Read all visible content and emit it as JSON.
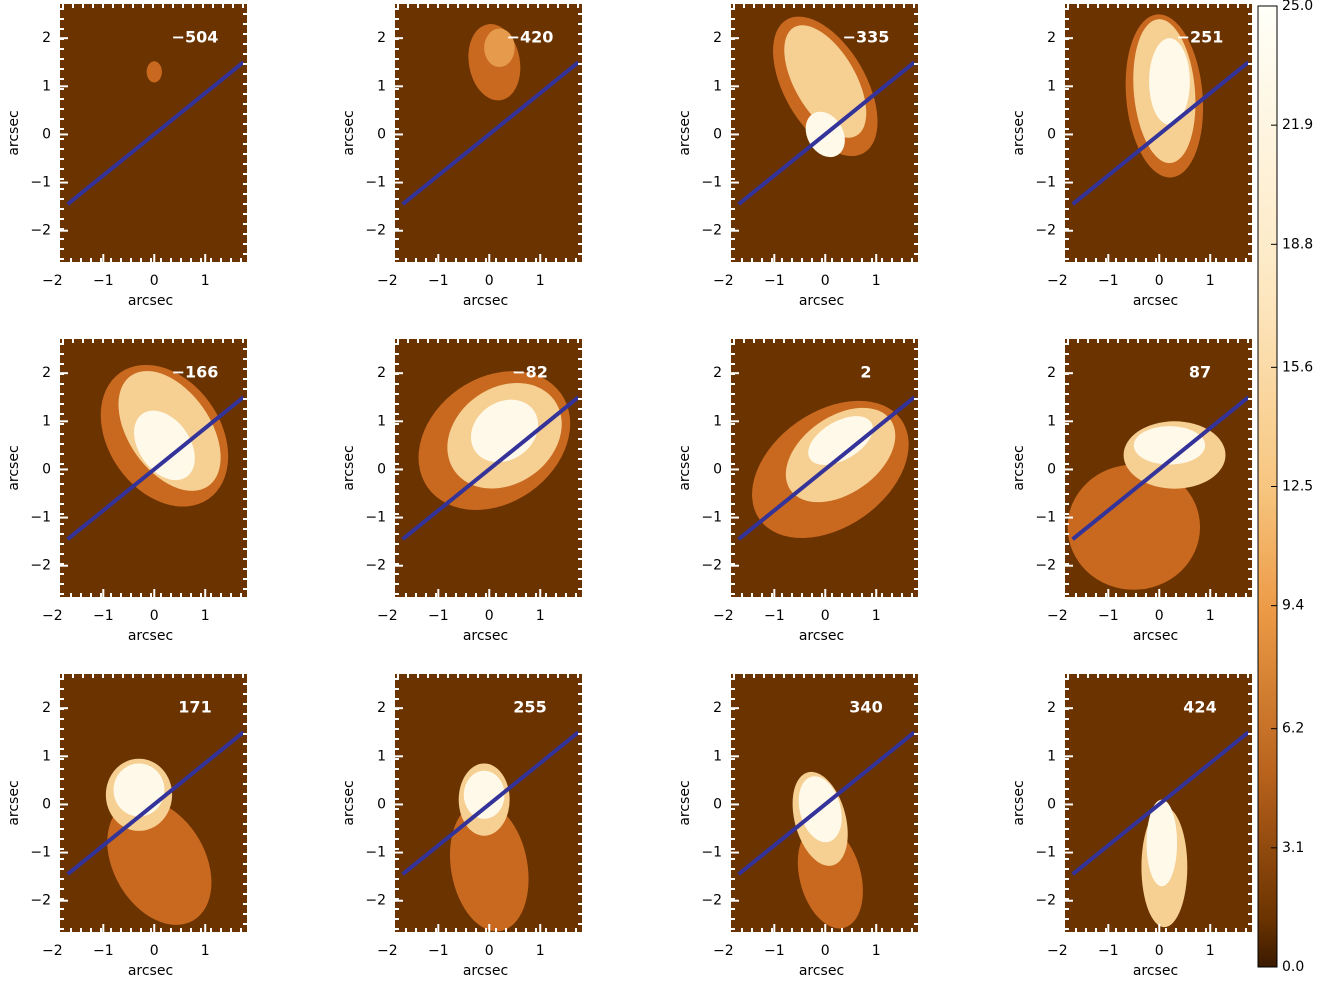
{
  "chart_data": [
    {
      "type": "image",
      "label": "−504",
      "x_label": "arcsec",
      "y_label": "arcsec",
      "xlim": [
        -1.85,
        1.82
      ],
      "ylim": [
        -2.65,
        2.71
      ],
      "xticks": [
        {
          "value": -2,
          "label": "−2"
        },
        {
          "value": -1,
          "label": "−1"
        },
        0,
        1
      ],
      "yticks": [
        {
          "value": -2,
          "label": "−2"
        },
        {
          "value": -1,
          "label": "−1"
        },
        0,
        1,
        2
      ],
      "line": {
        "x": [
          -1.7,
          1.75
        ],
        "y": [
          -1.45,
          1.5
        ],
        "color": "#333399"
      }
    },
    {
      "type": "image",
      "label": "−420",
      "x_label": "arcsec",
      "y_label": "arcsec",
      "xlim": [
        -1.85,
        1.82
      ],
      "ylim": [
        -2.65,
        2.71
      ],
      "xticks": [
        {
          "value": -2,
          "label": "−2"
        },
        {
          "value": -1,
          "label": "−1"
        },
        0,
        1
      ],
      "yticks": [
        {
          "value": -2,
          "label": "−2"
        },
        {
          "value": -1,
          "label": "−1"
        },
        0,
        1,
        2
      ],
      "line": {
        "x": [
          -1.7,
          1.75
        ],
        "y": [
          -1.45,
          1.5
        ],
        "color": "#333399"
      }
    },
    {
      "type": "image",
      "label": "−335",
      "x_label": "arcsec",
      "y_label": "arcsec",
      "xlim": [
        -1.85,
        1.82
      ],
      "ylim": [
        -2.65,
        2.71
      ],
      "xticks": [
        {
          "value": -2,
          "label": "−2"
        },
        {
          "value": -1,
          "label": "−1"
        },
        0,
        1
      ],
      "yticks": [
        {
          "value": -2,
          "label": "−2"
        },
        {
          "value": -1,
          "label": "−1"
        },
        0,
        1,
        2
      ],
      "line": {
        "x": [
          -1.7,
          1.75
        ],
        "y": [
          -1.45,
          1.5
        ],
        "color": "#333399"
      }
    },
    {
      "type": "image",
      "label": "−251",
      "x_label": "arcsec",
      "y_label": "arcsec",
      "xlim": [
        -1.85,
        1.82
      ],
      "ylim": [
        -2.65,
        2.71
      ],
      "xticks": [
        {
          "value": -2,
          "label": "−2"
        },
        {
          "value": -1,
          "label": "−1"
        },
        0,
        1
      ],
      "yticks": [
        {
          "value": -2,
          "label": "−2"
        },
        {
          "value": -1,
          "label": "−1"
        },
        0,
        1,
        2
      ],
      "line": {
        "x": [
          -1.7,
          1.75
        ],
        "y": [
          -1.45,
          1.5
        ],
        "color": "#333399"
      }
    },
    {
      "type": "image",
      "label": "−166",
      "x_label": "arcsec",
      "y_label": "arcsec",
      "xlim": [
        -1.85,
        1.82
      ],
      "ylim": [
        -2.65,
        2.71
      ],
      "xticks": [
        {
          "value": -2,
          "label": "−2"
        },
        {
          "value": -1,
          "label": "−1"
        },
        0,
        1
      ],
      "yticks": [
        {
          "value": -2,
          "label": "−2"
        },
        {
          "value": -1,
          "label": "−1"
        },
        0,
        1,
        2
      ],
      "line": {
        "x": [
          -1.7,
          1.75
        ],
        "y": [
          -1.45,
          1.5
        ],
        "color": "#333399"
      }
    },
    {
      "type": "image",
      "label": "−82",
      "x_label": "arcsec",
      "y_label": "arcsec",
      "xlim": [
        -1.85,
        1.82
      ],
      "ylim": [
        -2.65,
        2.71
      ],
      "xticks": [
        {
          "value": -2,
          "label": "−2"
        },
        {
          "value": -1,
          "label": "−1"
        },
        0,
        1
      ],
      "yticks": [
        {
          "value": -2,
          "label": "−2"
        },
        {
          "value": -1,
          "label": "−1"
        },
        0,
        1,
        2
      ],
      "line": {
        "x": [
          -1.7,
          1.75
        ],
        "y": [
          -1.45,
          1.5
        ],
        "color": "#333399"
      }
    },
    {
      "type": "image",
      "label": "2",
      "x_label": "arcsec",
      "y_label": "arcsec",
      "xlim": [
        -1.85,
        1.82
      ],
      "ylim": [
        -2.65,
        2.71
      ],
      "xticks": [
        {
          "value": -2,
          "label": "−2"
        },
        {
          "value": -1,
          "label": "−1"
        },
        0,
        1
      ],
      "yticks": [
        {
          "value": -2,
          "label": "−2"
        },
        {
          "value": -1,
          "label": "−1"
        },
        0,
        1,
        2
      ],
      "line": {
        "x": [
          -1.7,
          1.75
        ],
        "y": [
          -1.45,
          1.5
        ],
        "color": "#333399"
      }
    },
    {
      "type": "image",
      "label": "87",
      "x_label": "arcsec",
      "y_label": "arcsec",
      "xlim": [
        -1.85,
        1.82
      ],
      "ylim": [
        -2.65,
        2.71
      ],
      "xticks": [
        {
          "value": -2,
          "label": "−2"
        },
        {
          "value": -1,
          "label": "−1"
        },
        0,
        1
      ],
      "yticks": [
        {
          "value": -2,
          "label": "−2"
        },
        {
          "value": -1,
          "label": "−1"
        },
        0,
        1,
        2
      ],
      "line": {
        "x": [
          -1.7,
          1.75
        ],
        "y": [
          -1.45,
          1.5
        ],
        "color": "#333399"
      }
    },
    {
      "type": "image",
      "label": "171",
      "x_label": "arcsec",
      "y_label": "arcsec",
      "xlim": [
        -1.85,
        1.82
      ],
      "ylim": [
        -2.65,
        2.71
      ],
      "xticks": [
        {
          "value": -2,
          "label": "−2"
        },
        {
          "value": -1,
          "label": "−1"
        },
        0,
        1
      ],
      "yticks": [
        {
          "value": -2,
          "label": "−2"
        },
        {
          "value": -1,
          "label": "−1"
        },
        0,
        1,
        2
      ],
      "line": {
        "x": [
          -1.7,
          1.75
        ],
        "y": [
          -1.45,
          1.5
        ],
        "color": "#333399"
      }
    },
    {
      "type": "image",
      "label": "255",
      "x_label": "arcsec",
      "y_label": "arcsec",
      "xlim": [
        -1.85,
        1.82
      ],
      "ylim": [
        -2.65,
        2.71
      ],
      "xticks": [
        {
          "value": -2,
          "label": "−2"
        },
        {
          "value": -1,
          "label": "−1"
        },
        0,
        1
      ],
      "yticks": [
        {
          "value": -2,
          "label": "−2"
        },
        {
          "value": -1,
          "label": "−1"
        },
        0,
        1,
        2
      ],
      "line": {
        "x": [
          -1.7,
          1.75
        ],
        "y": [
          -1.45,
          1.5
        ],
        "color": "#333399"
      }
    },
    {
      "type": "image",
      "label": "340",
      "x_label": "arcsec",
      "y_label": "arcsec",
      "xlim": [
        -1.85,
        1.82
      ],
      "ylim": [
        -2.65,
        2.71
      ],
      "xticks": [
        {
          "value": -2,
          "label": "−2"
        },
        {
          "value": -1,
          "label": "−1"
        },
        0,
        1
      ],
      "yticks": [
        {
          "value": -2,
          "label": "−2"
        },
        {
          "value": -1,
          "label": "−1"
        },
        0,
        1,
        2
      ],
      "line": {
        "x": [
          -1.7,
          1.75
        ],
        "y": [
          -1.45,
          1.5
        ],
        "color": "#333399"
      }
    },
    {
      "type": "image",
      "label": "424",
      "x_label": "arcsec",
      "y_label": "arcsec",
      "xlim": [
        -1.85,
        1.82
      ],
      "ylim": [
        -2.65,
        2.71
      ],
      "xticks": [
        {
          "value": -2,
          "label": "−2"
        },
        {
          "value": -1,
          "label": "−1"
        },
        0,
        1
      ],
      "yticks": [
        {
          "value": -2,
          "label": "−2"
        },
        {
          "value": -1,
          "label": "−1"
        },
        0,
        1,
        2
      ],
      "line": {
        "x": [
          -1.7,
          1.75
        ],
        "y": [
          -1.45,
          1.5
        ],
        "color": "#333399"
      }
    }
  ],
  "colorbar": {
    "lim": [
      0,
      25
    ],
    "ticks": [
      {
        "value": 0,
        "label": "0.0"
      },
      3.1,
      6.2,
      9.4,
      12.5,
      15.6,
      18.8,
      21.9,
      {
        "value": 25,
        "label": "25.0"
      }
    ]
  }
}
